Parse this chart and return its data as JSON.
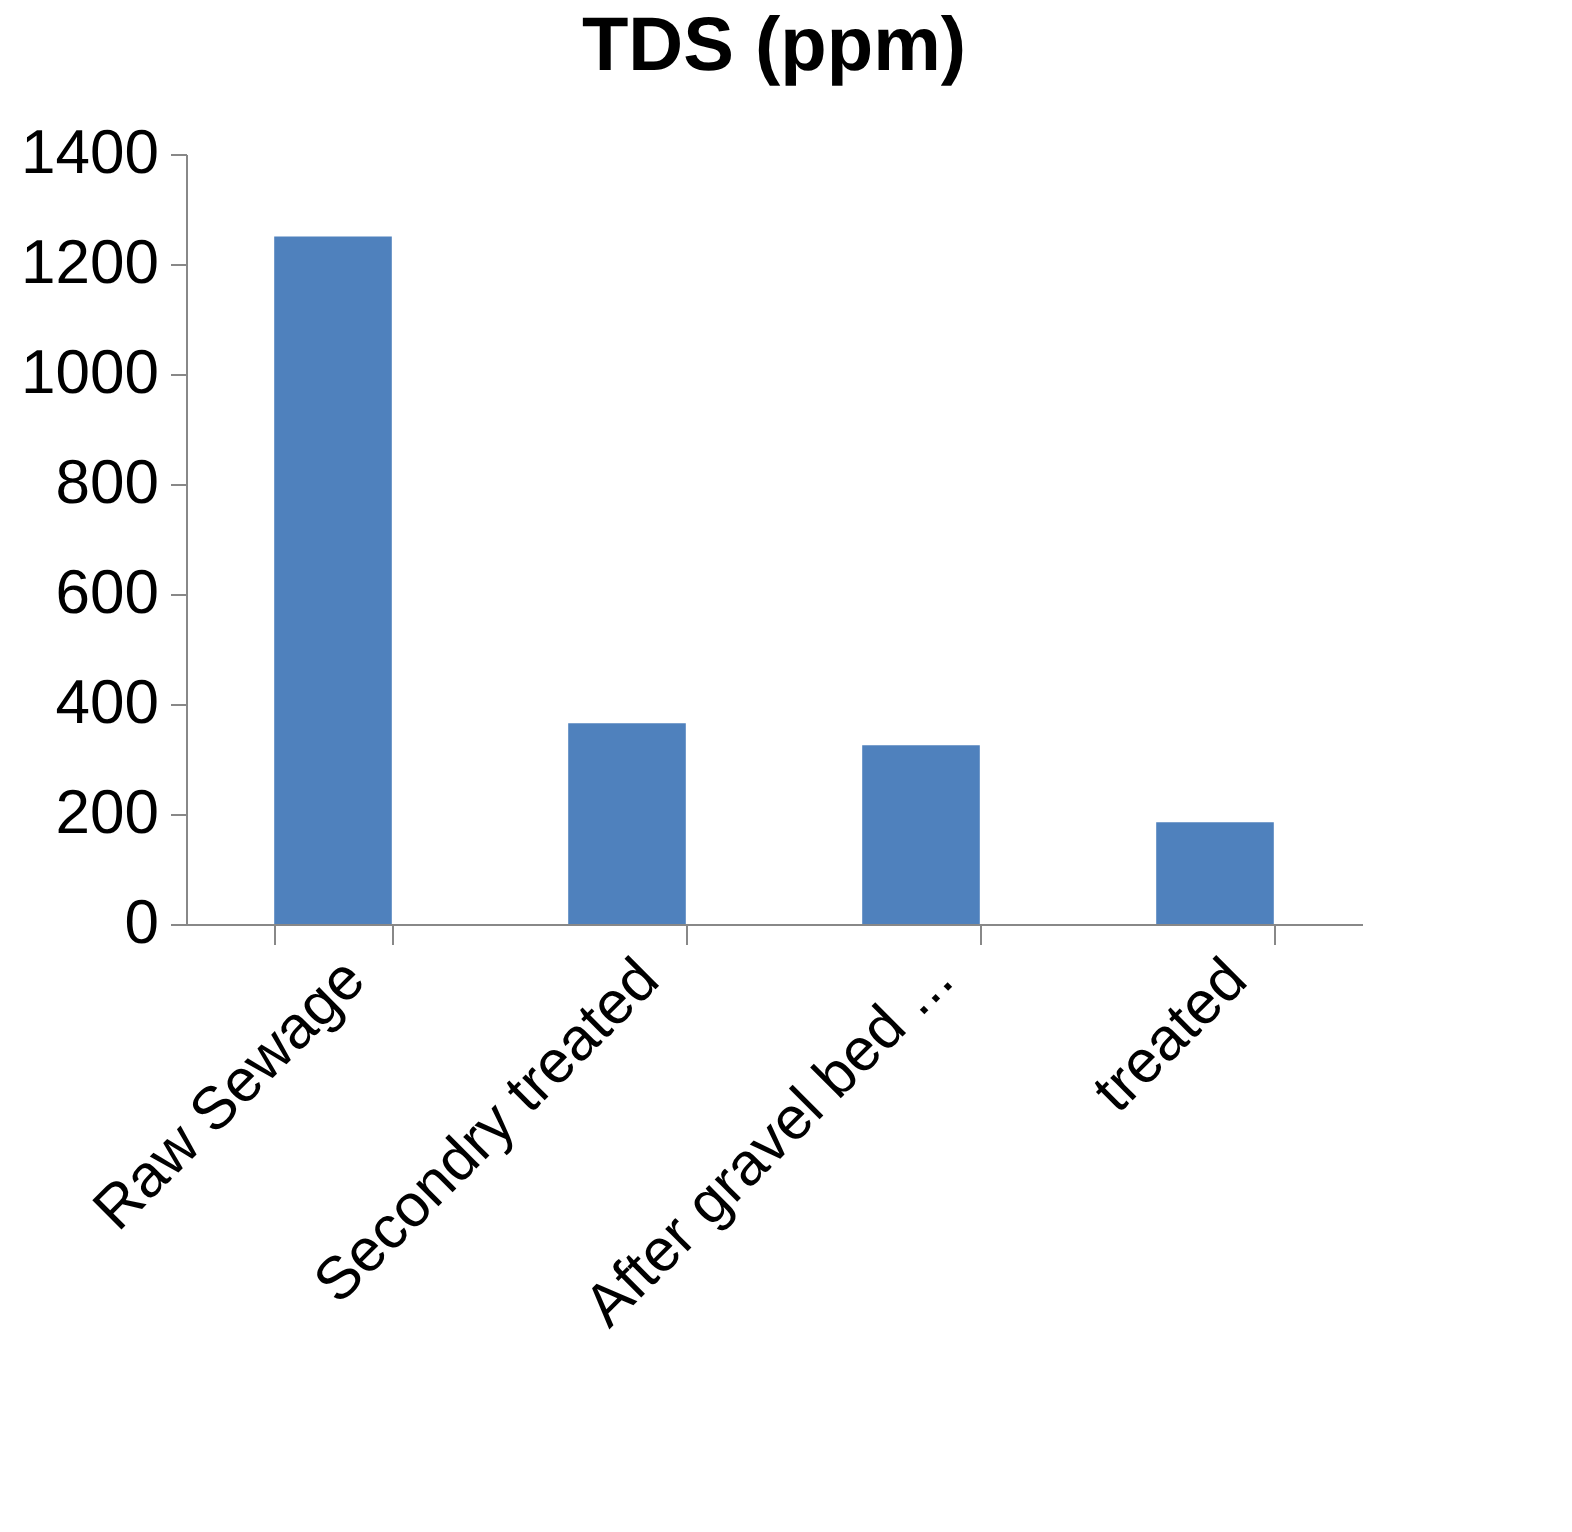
{
  "chart_data": {
    "type": "bar",
    "title": "TDS (ppm)",
    "categories": [
      "Raw Sewage",
      "Secondry treated",
      "After gravel bed ...",
      "treated"
    ],
    "values": [
      1250,
      365,
      325,
      185
    ],
    "color": "#4f81bd",
    "ylim": [
      0,
      1400
    ],
    "yticks": [
      0,
      200,
      400,
      600,
      800,
      1000,
      1200,
      1400
    ],
    "grid": false
  }
}
